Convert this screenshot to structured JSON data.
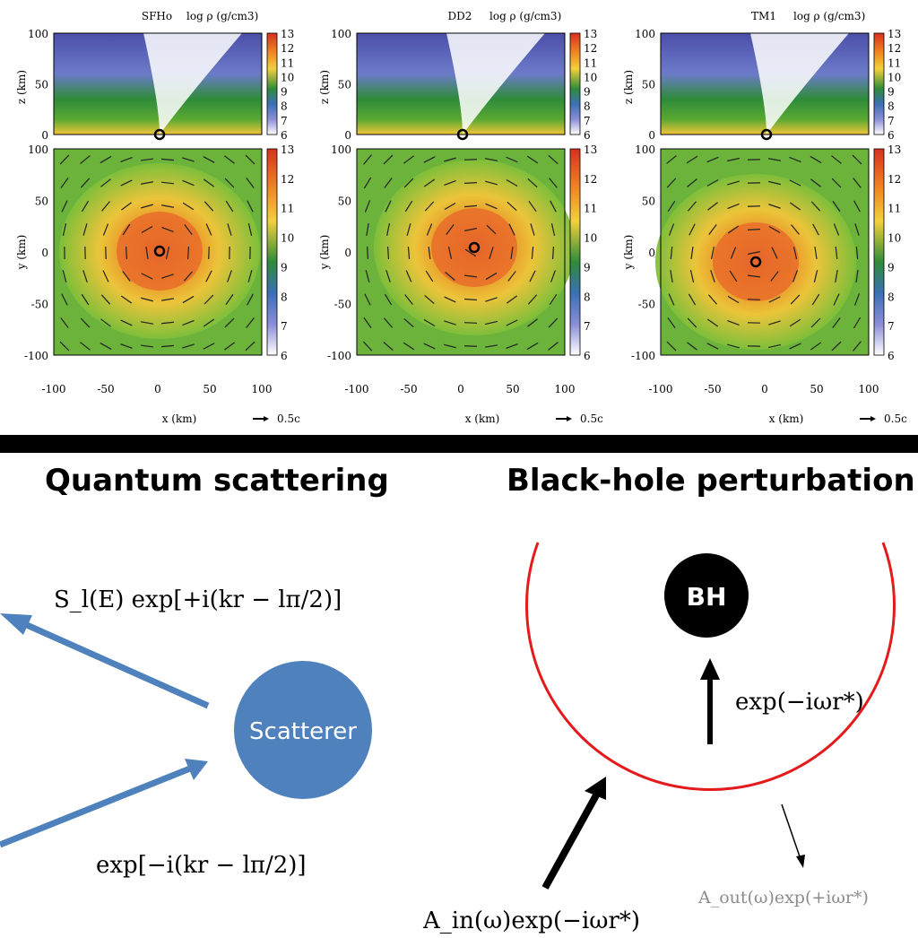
{
  "top_panels": {
    "density_label": "log ρ (g/cm3)",
    "x_axis_label": "x (km)",
    "z_axis_label": "z (km)",
    "y_axis_label": "y (km)",
    "velocity_scale_label": "0.5c",
    "panels": [
      {
        "eos": "SFHo"
      },
      {
        "eos": "DD2"
      },
      {
        "eos": "TM1"
      }
    ],
    "x_ticks": [
      "-100",
      "-50",
      "0",
      "50",
      "100"
    ],
    "z_ticks": [
      "100",
      "50",
      "0"
    ],
    "y_ticks": [
      "100",
      "50",
      "0",
      "-50",
      "-100"
    ],
    "colorbar_ticks": [
      "13",
      "12",
      "11",
      "10",
      "9",
      "8",
      "7",
      "6"
    ],
    "colors": {
      "red": "#d7301f",
      "orange": "#f08a24",
      "yellow": "#f2d13a",
      "green": "#5aa832",
      "blue": "#3b6fb6",
      "white": "#ffffff"
    }
  },
  "bottom": {
    "left_title": "Quantum scattering",
    "right_title": "Black-hole perturbation",
    "scatterer_label": "Scatterer",
    "bh_label": "BH",
    "outgoing_wave": "S_l(E) exp[+i(kr − lπ/2)]",
    "incoming_wave": "exp[−i(kr − lπ/2)]",
    "bh_inner_wave": "exp(−iωr*)",
    "bh_in_wave": "A_in(ω)exp(−iωr*)",
    "bh_out_wave": "A_out(ω)exp(+iωr*)",
    "colors": {
      "scatterer": "#4f81bd",
      "arrow_blue": "#4f81bd",
      "horizon": "#e41a1c",
      "bh": "#000000",
      "faded_text": "#8c8c8c"
    }
  }
}
